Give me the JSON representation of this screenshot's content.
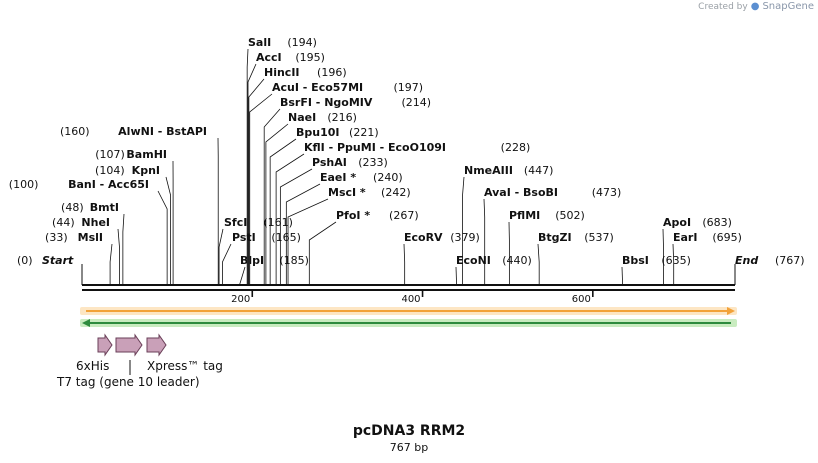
{
  "branding": {
    "created_by": "Created by",
    "product": "SnapGene"
  },
  "plasmid": {
    "name": "pcDNA3 RRM2",
    "size_label": "767 bp",
    "length": 767
  },
  "axis": {
    "ticks": [
      200,
      400,
      600
    ]
  },
  "ends": {
    "start": {
      "label": "Start",
      "pos": 0
    },
    "end": {
      "label": "End",
      "pos": 767
    }
  },
  "sites": [
    {
      "names": [
        "MslI"
      ],
      "pos": 33
    },
    {
      "names": [
        "NheI"
      ],
      "pos": 44
    },
    {
      "names": [
        "BmtI"
      ],
      "pos": 48
    },
    {
      "names": [
        "BanI",
        "Acc65I"
      ],
      "pos": 100
    },
    {
      "names": [
        "KpnI"
      ],
      "pos": 104
    },
    {
      "names": [
        "BamHI"
      ],
      "pos": 107
    },
    {
      "names": [
        "AlwNI",
        "BstAPI"
      ],
      "pos": 160
    },
    {
      "names": [
        "SfcI"
      ],
      "pos": 161
    },
    {
      "names": [
        "PstI"
      ],
      "pos": 165
    },
    {
      "names": [
        "BlpI"
      ],
      "pos": 185
    },
    {
      "names": [
        "SalI"
      ],
      "pos": 194
    },
    {
      "names": [
        "AccI"
      ],
      "pos": 195
    },
    {
      "names": [
        "HincII"
      ],
      "pos": 196
    },
    {
      "names": [
        "AcuI",
        "Eco57MI"
      ],
      "pos": 197
    },
    {
      "names": [
        "BsrFI",
        "NgoMIV"
      ],
      "pos": 214
    },
    {
      "names": [
        "NaeI"
      ],
      "pos": 216
    },
    {
      "names": [
        "Bpu10I"
      ],
      "pos": 221
    },
    {
      "names": [
        "KflI",
        "PpuMI",
        "EcoO109I"
      ],
      "pos": 228
    },
    {
      "names": [
        "PshAI"
      ],
      "pos": 233
    },
    {
      "names": [
        "EaeI *"
      ],
      "pos": 240
    },
    {
      "names": [
        "MscI *"
      ],
      "pos": 242
    },
    {
      "names": [
        "PfoI *"
      ],
      "pos": 267
    },
    {
      "names": [
        "EcoRV"
      ],
      "pos": 379
    },
    {
      "names": [
        "EcoNI"
      ],
      "pos": 440
    },
    {
      "names": [
        "NmeAIII"
      ],
      "pos": 447
    },
    {
      "names": [
        "AvaI",
        "BsoBI"
      ],
      "pos": 473
    },
    {
      "names": [
        "PflMI"
      ],
      "pos": 502
    },
    {
      "names": [
        "BtgZI"
      ],
      "pos": 537
    },
    {
      "names": [
        "BbsI"
      ],
      "pos": 635
    },
    {
      "names": [
        "ApoI"
      ],
      "pos": 683
    },
    {
      "names": [
        "EarI"
      ],
      "pos": 695
    }
  ],
  "orfs": [
    {
      "name": "orf-forward",
      "direction": "forward",
      "color": "#f2a23a",
      "glow": "#fde6c4"
    },
    {
      "name": "orf-reverse",
      "direction": "reverse",
      "color": "#2e8b3e",
      "glow": "#c9ecc0"
    }
  ],
  "features": [
    {
      "label": "6xHis"
    },
    {
      "label": "T7 tag (gene 10 leader)"
    },
    {
      "label": "Xpress™ tag"
    }
  ],
  "colors": {
    "feature_fill": "#c9a0b8",
    "feature_stroke": "#6a3f58",
    "line": "#111111"
  }
}
